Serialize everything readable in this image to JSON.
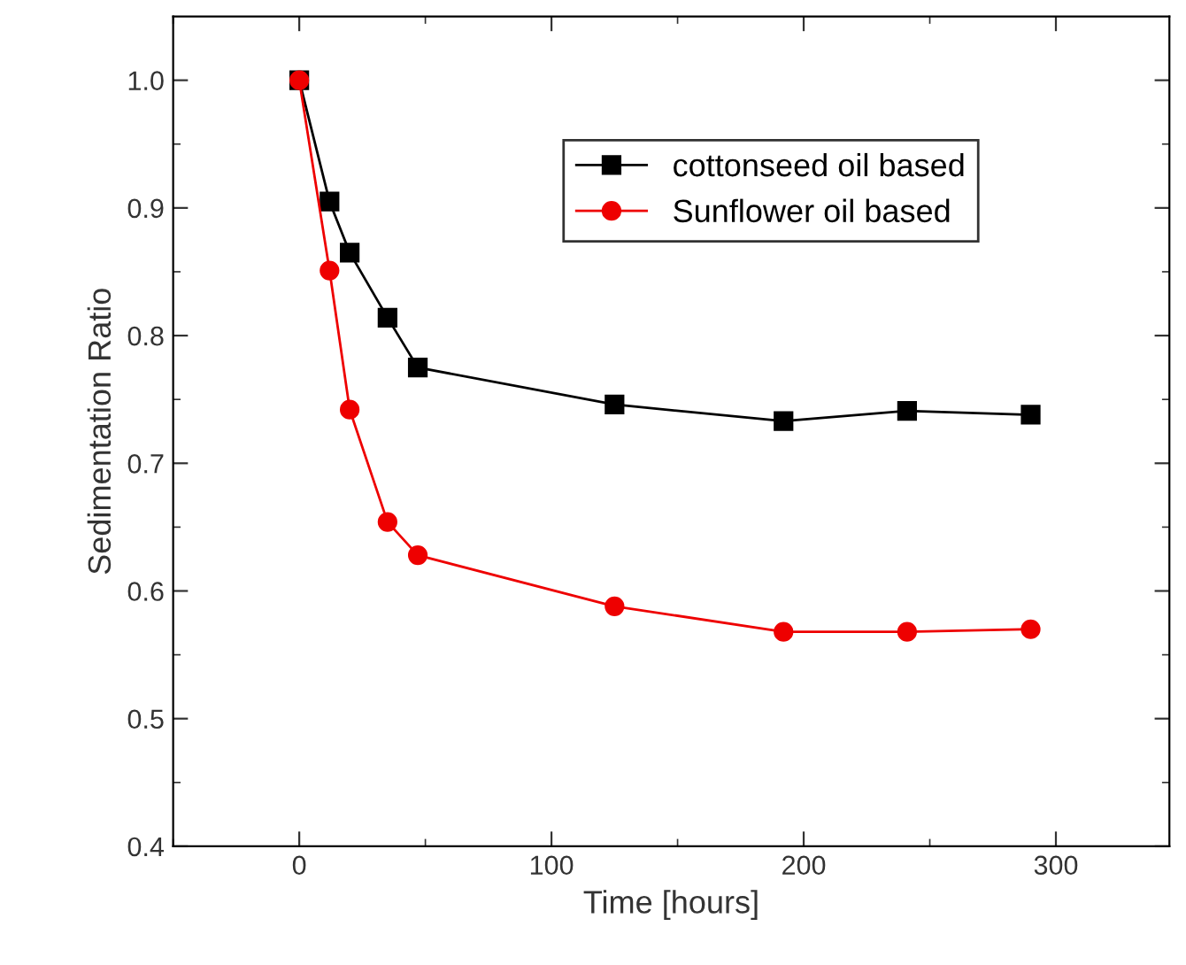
{
  "chart_data": {
    "type": "line",
    "xlabel": "Time [hours]",
    "ylabel": "Sedimentation Ratio",
    "xlim": [
      -50,
      345
    ],
    "ylim": [
      0.4,
      1.05
    ],
    "xticks": [
      {
        "value": -50,
        "label": null
      },
      0,
      {
        "value": 50,
        "label": null
      },
      100,
      {
        "value": 150,
        "label": null
      },
      200,
      {
        "value": 250,
        "label": null
      },
      300
    ],
    "yticks": [
      0.4,
      {
        "value": 0.45,
        "label": null
      },
      0.5,
      {
        "value": 0.55,
        "label": null
      },
      0.6,
      {
        "value": 0.65,
        "label": null
      },
      0.7,
      {
        "value": 0.75,
        "label": null
      },
      0.8,
      {
        "value": 0.85,
        "label": null
      },
      0.9,
      {
        "value": 0.95,
        "label": null
      },
      {
        "value": 1.0,
        "label": "1.0"
      }
    ],
    "grid": false,
    "legend": "top",
    "line_style": "solid",
    "series": [
      {
        "name": "cottonseed oil based",
        "color": "#000000",
        "marker": "square",
        "x": [
          0,
          12,
          20,
          35,
          47,
          125,
          192,
          241,
          290
        ],
        "values": [
          1.0,
          0.905,
          0.865,
          0.814,
          0.775,
          0.746,
          0.733,
          0.741,
          0.738
        ]
      },
      {
        "name": "Sunflower oil based",
        "color": "#ee0000",
        "marker": "circle",
        "x": [
          0,
          12,
          20,
          35,
          47,
          125,
          192,
          241,
          290
        ],
        "values": [
          1.0,
          0.851,
          0.742,
          0.654,
          0.628,
          0.588,
          0.568,
          0.568,
          0.57
        ]
      }
    ]
  }
}
